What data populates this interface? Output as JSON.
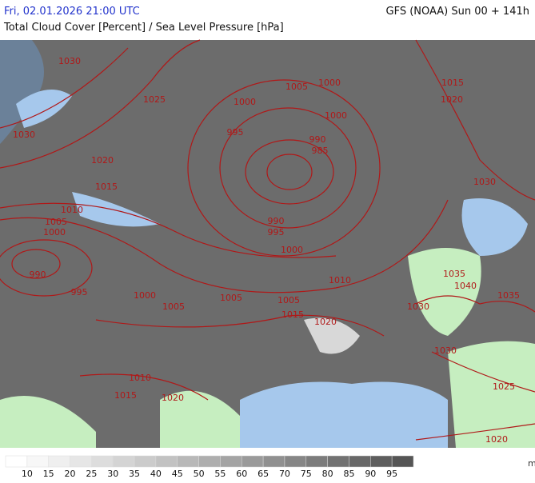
{
  "header": {
    "datetime": "Fri, 02.01.2026 21:00 UTC",
    "model": "GFS (NOAA) Sun 00 + 141h",
    "subtitle": "Total Cloud Cover [Percent] / Sea Level Pressure [hPa]"
  },
  "map": {
    "contour_labels": [
      "1030",
      "1025",
      "1030",
      "1020",
      "1015",
      "1010",
      "1005",
      "1000",
      "990",
      "995",
      "1000",
      "1005",
      "1005",
      "1005",
      "1015",
      "1020",
      "1010",
      "1000",
      "995",
      "990",
      "995",
      "1000",
      "1005",
      "1000",
      "1000",
      "990",
      "985",
      "1015",
      "1020",
      "1030",
      "1035",
      "1040",
      "1035",
      "1030",
      "1030",
      "1025",
      "1020",
      "1010",
      "1015",
      "1020"
    ],
    "contour_color": "#b01818"
  },
  "legend": {
    "labels": [
      10,
      15,
      20,
      25,
      30,
      35,
      40,
      45,
      50,
      55,
      60,
      65,
      70,
      75,
      80,
      85,
      90,
      95
    ],
    "colors": [
      "#ffffff",
      "#f7f7f7",
      "#efefef",
      "#e6e6e6",
      "#dddddd",
      "#d4d4d4",
      "#cbcbcb",
      "#c2c2c2",
      "#b8b8b8",
      "#aeaeae",
      "#a4a4a4",
      "#9a9a9a",
      "#909090",
      "#868686",
      "#7c7c7c",
      "#727272",
      "#686868",
      "#5e5e5e",
      "#555555"
    ]
  }
}
